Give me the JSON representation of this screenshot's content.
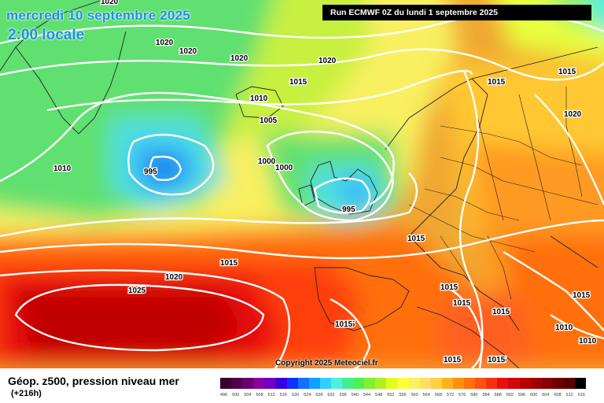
{
  "header": {
    "date": "mercredi 10 septembre 2025",
    "time": "2:00 locale",
    "run": "Run ECMWF 0Z du lundi 1 septembre 2025"
  },
  "copyright": "Copyright 2025 Meteociel.fr",
  "legend": {
    "title": "Géop. z500, pression niveau mer",
    "subtitle": "(+216h)",
    "colors": [
      "#3a0030",
      "#52004a",
      "#6a0070",
      "#8a00a0",
      "#7000c0",
      "#3800e0",
      "#1030ff",
      "#1070ff",
      "#10a0ff",
      "#30d0ff",
      "#50f0e0",
      "#40f090",
      "#50f050",
      "#80f030",
      "#b0f020",
      "#e0ff20",
      "#ffff40",
      "#fff060",
      "#ffe060",
      "#ffd040",
      "#ffb020",
      "#ff9010",
      "#ff7010",
      "#ff5010",
      "#f83010",
      "#e81010",
      "#d00808",
      "#b80000",
      "#a00000",
      "#880000",
      "#700000",
      "#580000",
      "#000000"
    ],
    "ticks": [
      "496",
      "500",
      "504",
      "508",
      "512",
      "516",
      "520",
      "524",
      "528",
      "532",
      "536",
      "540",
      "544",
      "548",
      "552",
      "556",
      "560",
      "564",
      "568",
      "572",
      "576",
      "580",
      "584",
      "588",
      "592",
      "596",
      "600",
      "604",
      "608",
      "612",
      "616"
    ]
  },
  "isobar_labels": [
    {
      "text": "1020"
    },
    {
      "text": "1020"
    },
    {
      "text": "1020"
    },
    {
      "text": "1020"
    },
    {
      "text": "1020"
    },
    {
      "text": "1015"
    },
    {
      "text": "1015"
    },
    {
      "text": "1015"
    },
    {
      "text": "1010"
    },
    {
      "text": "1005"
    },
    {
      "text": "1000"
    },
    {
      "text": "1000"
    },
    {
      "text": "995"
    },
    {
      "text": "995"
    },
    {
      "text": "1010"
    },
    {
      "text": "1020"
    },
    {
      "text": "1015"
    },
    {
      "text": "1015"
    },
    {
      "text": "1020"
    },
    {
      "text": "1025"
    },
    {
      "text": "1015"
    },
    {
      "text": "1015"
    },
    {
      "text": "1015"
    },
    {
      "text": "1015"
    },
    {
      "text": "1015"
    },
    {
      "text": "1015"
    },
    {
      "text": "1015"
    },
    {
      "text": "1010"
    },
    {
      "text": "1010"
    },
    {
      "text": "1015"
    },
    {
      "text": "1015"
    },
    {
      "text": "1015"
    }
  ]
}
